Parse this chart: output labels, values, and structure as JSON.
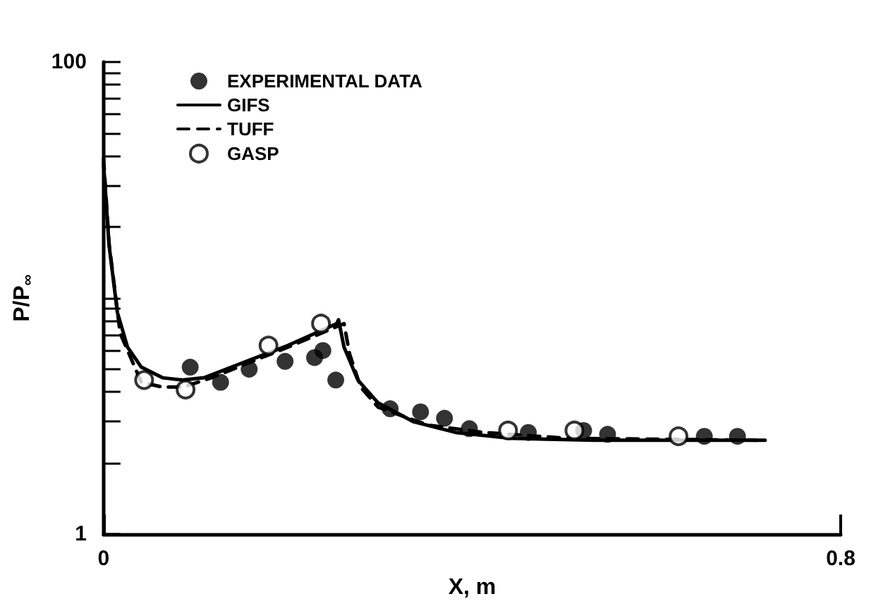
{
  "chart_data": {
    "type": "line",
    "xlabel": "X, m",
    "ylabel": "P/P$_{∞}$",
    "xlim": [
      0,
      0.8
    ],
    "xticks": [
      0,
      0.8
    ],
    "ylim": [
      1,
      100
    ],
    "yticks": [
      1,
      {
        "value": 2,
        "label": null
      },
      {
        "value": 3,
        "label": null
      },
      {
        "value": 4,
        "label": null
      },
      {
        "value": 5,
        "label": null
      },
      {
        "value": 6,
        "label": null
      },
      {
        "value": 7,
        "label": null
      },
      {
        "value": 8,
        "label": null
      },
      {
        "value": 9,
        "label": null
      },
      {
        "value": 10,
        "label": null
      },
      {
        "value": 20,
        "label": null
      },
      {
        "value": 30,
        "label": null
      },
      {
        "value": 40,
        "label": null
      },
      {
        "value": 50,
        "label": null
      },
      {
        "value": 60,
        "label": null
      },
      {
        "value": 70,
        "label": null
      },
      {
        "value": 80,
        "label": null
      },
      {
        "value": 90,
        "label": null
      },
      100
    ],
    "log": "y",
    "grid": false,
    "legend": "top left",
    "series": [
      {
        "name": "EXPERIMENTAL DATA",
        "type": "scatter",
        "marker": "circle",
        "color": "#000000",
        "x": [
          0.094,
          0.127,
          0.158,
          0.197,
          0.229,
          0.238,
          0.252,
          0.311,
          0.344,
          0.37,
          0.397,
          0.461,
          0.521,
          0.547,
          0.652,
          0.688
        ],
        "values": [
          5.1,
          4.4,
          5.0,
          5.4,
          5.6,
          6.0,
          4.5,
          3.4,
          3.3,
          3.1,
          2.8,
          2.7,
          2.75,
          2.65,
          2.6,
          2.6
        ]
      },
      {
        "name": "GIFS",
        "type": "line",
        "line_style": "solid",
        "marker": "none",
        "color": "#000000",
        "x": [
          0,
          0.006,
          0.015,
          0.026,
          0.041,
          0.064,
          0.086,
          0.109,
          0.155,
          0.2,
          0.253,
          0.255,
          0.261,
          0.276,
          0.298,
          0.336,
          0.382,
          0.442,
          0.533,
          0.624,
          0.718
        ],
        "values": [
          37,
          16.7,
          8.7,
          6.2,
          5.1,
          4.6,
          4.5,
          4.6,
          5.4,
          6.3,
          7.8,
          8.1,
          6.2,
          4.5,
          3.6,
          3.0,
          2.7,
          2.55,
          2.5,
          2.5,
          2.5
        ]
      },
      {
        "name": "TUFF",
        "type": "line",
        "line_style": "dashed",
        "marker": "none",
        "color": "#000000",
        "x": [
          0,
          0.006,
          0.018,
          0.041,
          0.064,
          0.086,
          0.117,
          0.2,
          0.261,
          0.267,
          0.279,
          0.298,
          0.352,
          0.412,
          0.503,
          0.718
        ],
        "values": [
          39,
          17,
          7.1,
          4.4,
          4.2,
          4.2,
          4.6,
          6.2,
          7.8,
          5.8,
          4.2,
          3.45,
          2.9,
          2.7,
          2.55,
          2.5
        ]
      },
      {
        "name": "GASP",
        "type": "scatter",
        "marker": "circle",
        "color": "#000000",
        "x": [
          0.044,
          0.089,
          0.179,
          0.236,
          0.439,
          0.511,
          0.624
        ],
        "values": [
          4.5,
          4.1,
          6.3,
          7.8,
          2.75,
          2.75,
          2.6
        ]
      }
    ]
  }
}
